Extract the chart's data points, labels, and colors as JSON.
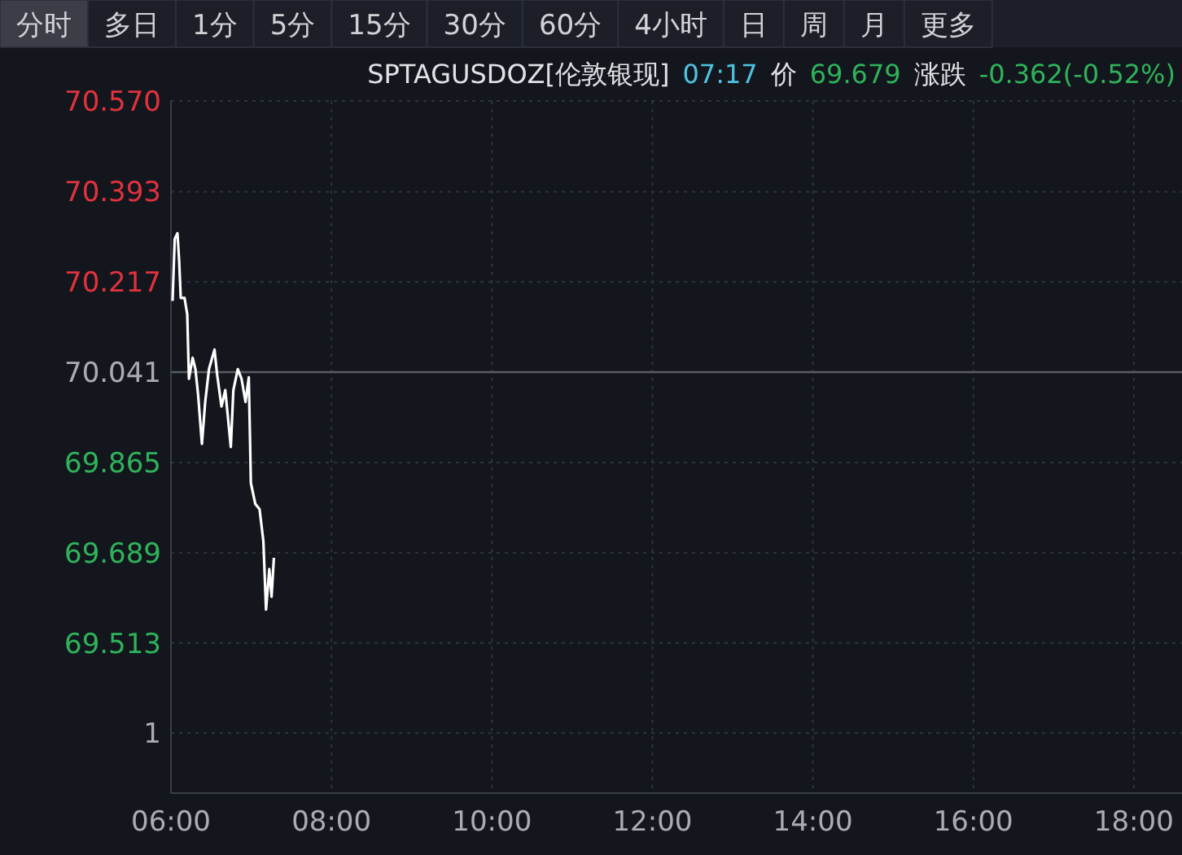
{
  "chart_data": {
    "type": "line",
    "title": "SPTAGUSDOZ[伦敦银现]",
    "subtitle": "07:17 价 69.679 涨跌 -0.362(-0.52%)",
    "annotations": [
      "1",
      "分时",
      "多日",
      "1分",
      "5分",
      "15分",
      "30分",
      "60分",
      "4小时",
      "日",
      "周",
      "月",
      "更多"
    ],
    "x": [
      6.02,
      6.047,
      6.081,
      6.102,
      6.122,
      6.169,
      6.203,
      6.224,
      6.27,
      6.305,
      6.339,
      6.386,
      6.427,
      6.474,
      6.543,
      6.575,
      6.63,
      6.677,
      6.746,
      6.778,
      6.833,
      6.88,
      6.929,
      6.97,
      6.996,
      7.051,
      7.104,
      7.152,
      7.185,
      7.226,
      7.254,
      7.283
    ],
    "series": [
      {
        "color": "#ffffff",
        "values": [
          70.18,
          70.301,
          70.312,
          70.259,
          70.186,
          70.186,
          70.154,
          70.028,
          70.069,
          70.047,
          69.996,
          69.901,
          69.983,
          70.047,
          70.085,
          70.037,
          69.974,
          70.006,
          69.895,
          70.006,
          70.047,
          70.028,
          69.983,
          70.031,
          69.825,
          69.784,
          69.774,
          69.711,
          69.578,
          69.657,
          69.603,
          69.679
        ]
      }
    ],
    "xlim": [
      6,
      18.6
    ],
    "xticks": [
      {
        "value": 6,
        "label": "06:00"
      },
      {
        "value": 8,
        "label": "08:00"
      },
      {
        "value": 10,
        "label": "10:00"
      },
      {
        "value": 12,
        "label": "12:00"
      },
      {
        "value": 14,
        "label": "14:00"
      },
      {
        "value": 16,
        "label": "16:00"
      },
      {
        "value": 18,
        "label": "18:00"
      }
    ],
    "ylim": [
      69.22,
      70.57
    ],
    "yticks": [
      {
        "value": 70.57,
        "label": "70.570"
      },
      70.393,
      70.217,
      70.041,
      69.865,
      69.689,
      69.513,
      {
        "value": 69.337,
        "label": null
      }
    ],
    "ref_lines": [
      {
        "axis": "y",
        "value": 70.041,
        "color": "#5a5d66"
      }
    ],
    "grid": true,
    "marker": "none",
    "line_style": "solid"
  }
}
